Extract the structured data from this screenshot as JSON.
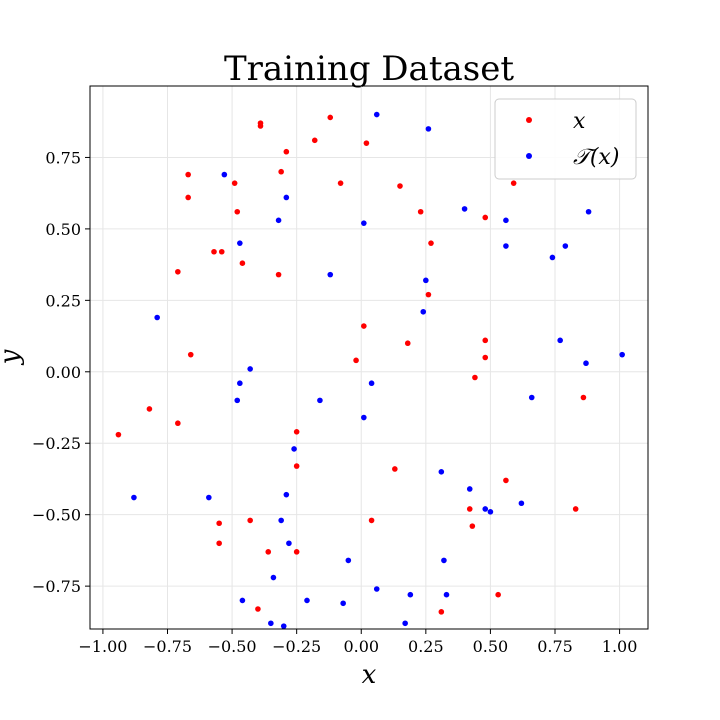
{
  "chart_data": {
    "type": "scatter",
    "title": "Training Dataset",
    "xlabel": "x",
    "ylabel": "y",
    "xlim": [
      -1.05,
      1.11
    ],
    "ylim": [
      -0.9,
      1.0
    ],
    "xticks": [
      -1.0,
      -0.75,
      -0.5,
      -0.25,
      0.0,
      0.25,
      0.5,
      0.75,
      1.0
    ],
    "xtick_labels": [
      "−1.00",
      "−0.75",
      "−0.50",
      "−0.25",
      "0.00",
      "0.25",
      "0.50",
      "0.75",
      "1.00"
    ],
    "yticks": [
      -0.75,
      -0.5,
      -0.25,
      0.0,
      0.25,
      0.5,
      0.75
    ],
    "ytick_labels": [
      "−0.75",
      "−0.50",
      "−0.25",
      "0.00",
      "0.25",
      "0.50",
      "0.75"
    ],
    "grid": true,
    "legend_position": "top-right",
    "series": [
      {
        "name": "x",
        "color": "#ff0000",
        "points": [
          [
            -0.39,
            0.87
          ],
          [
            -0.39,
            0.86
          ],
          [
            -0.12,
            0.89
          ],
          [
            -0.18,
            0.81
          ],
          [
            0.02,
            0.8
          ],
          [
            -0.29,
            0.77
          ],
          [
            -0.67,
            0.69
          ],
          [
            -0.31,
            0.7
          ],
          [
            -0.49,
            0.66
          ],
          [
            -0.08,
            0.66
          ],
          [
            0.15,
            0.65
          ],
          [
            0.59,
            0.66
          ],
          [
            -0.67,
            0.61
          ],
          [
            -0.48,
            0.56
          ],
          [
            0.23,
            0.56
          ],
          [
            0.48,
            0.54
          ],
          [
            0.27,
            0.45
          ],
          [
            -0.57,
            0.42
          ],
          [
            -0.54,
            0.42
          ],
          [
            -0.46,
            0.38
          ],
          [
            -0.71,
            0.35
          ],
          [
            -0.32,
            0.34
          ],
          [
            0.26,
            0.27
          ],
          [
            0.01,
            0.16
          ],
          [
            0.48,
            0.11
          ],
          [
            0.18,
            0.1
          ],
          [
            -0.66,
            0.06
          ],
          [
            -0.02,
            0.04
          ],
          [
            0.48,
            0.05
          ],
          [
            0.44,
            -0.02
          ],
          [
            0.86,
            -0.09
          ],
          [
            -0.82,
            -0.13
          ],
          [
            -0.71,
            -0.18
          ],
          [
            -0.94,
            -0.22
          ],
          [
            -0.25,
            -0.21
          ],
          [
            -0.25,
            -0.33
          ],
          [
            0.13,
            -0.34
          ],
          [
            0.56,
            -0.38
          ],
          [
            0.42,
            -0.48
          ],
          [
            0.83,
            -0.48
          ],
          [
            0.04,
            -0.52
          ],
          [
            -0.43,
            -0.52
          ],
          [
            -0.55,
            -0.53
          ],
          [
            0.43,
            -0.54
          ],
          [
            -0.55,
            -0.6
          ],
          [
            -0.36,
            -0.63
          ],
          [
            -0.25,
            -0.63
          ],
          [
            0.53,
            -0.78
          ],
          [
            -0.4,
            -0.83
          ],
          [
            0.31,
            -0.84
          ]
        ]
      },
      {
        "name": "T(x)",
        "color": "#0000ff",
        "points": [
          [
            0.06,
            0.9
          ],
          [
            0.26,
            0.85
          ],
          [
            -0.53,
            0.69
          ],
          [
            -0.29,
            0.61
          ],
          [
            0.4,
            0.57
          ],
          [
            0.88,
            0.56
          ],
          [
            -0.32,
            0.53
          ],
          [
            0.01,
            0.52
          ],
          [
            0.56,
            0.53
          ],
          [
            -0.47,
            0.45
          ],
          [
            0.56,
            0.44
          ],
          [
            0.79,
            0.44
          ],
          [
            0.74,
            0.4
          ],
          [
            -0.12,
            0.34
          ],
          [
            0.25,
            0.32
          ],
          [
            0.24,
            0.21
          ],
          [
            -0.79,
            0.19
          ],
          [
            0.77,
            0.11
          ],
          [
            1.01,
            0.06
          ],
          [
            0.87,
            0.03
          ],
          [
            -0.43,
            0.01
          ],
          [
            -0.47,
            -0.04
          ],
          [
            0.04,
            -0.04
          ],
          [
            -0.16,
            -0.1
          ],
          [
            -0.48,
            -0.1
          ],
          [
            0.66,
            -0.09
          ],
          [
            0.01,
            -0.16
          ],
          [
            -0.26,
            -0.27
          ],
          [
            0.31,
            -0.35
          ],
          [
            0.42,
            -0.41
          ],
          [
            -0.29,
            -0.43
          ],
          [
            -0.59,
            -0.44
          ],
          [
            -0.88,
            -0.44
          ],
          [
            0.62,
            -0.46
          ],
          [
            0.48,
            -0.48
          ],
          [
            0.5,
            -0.49
          ],
          [
            -0.31,
            -0.52
          ],
          [
            -0.28,
            -0.6
          ],
          [
            0.32,
            -0.66
          ],
          [
            -0.05,
            -0.66
          ],
          [
            -0.34,
            -0.72
          ],
          [
            0.06,
            -0.76
          ],
          [
            -0.46,
            -0.8
          ],
          [
            0.19,
            -0.78
          ],
          [
            0.33,
            -0.78
          ],
          [
            -0.21,
            -0.8
          ],
          [
            -0.07,
            -0.81
          ],
          [
            -0.35,
            -0.88
          ],
          [
            -0.3,
            -0.89
          ],
          [
            0.17,
            -0.88
          ]
        ]
      }
    ]
  },
  "legend": {
    "items": [
      {
        "label": "x",
        "color": "#ff0000"
      },
      {
        "label": "𝒯(x)",
        "color": "#0000ff"
      }
    ]
  }
}
